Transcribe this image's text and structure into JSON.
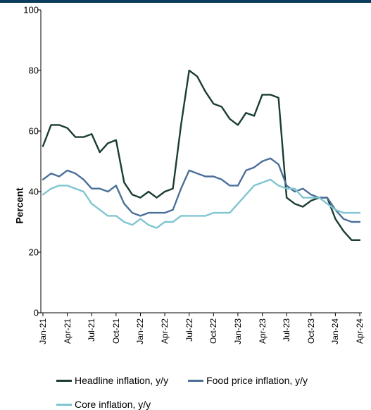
{
  "chart": {
    "type": "line",
    "border_top_color": "#0a3d5c",
    "background_color": "#ffffff",
    "ylabel": "Percent",
    "ylabel_fontsize": 14,
    "xlabels_fontsize": 12,
    "yticklabels_fontsize": 13,
    "ylim": [
      0,
      100
    ],
    "yticks": [
      0,
      20,
      40,
      60,
      80,
      100
    ],
    "axis_color": "#000000",
    "x_categories": [
      "Jan-21",
      "Feb-21",
      "Mar-21",
      "Apr-21",
      "May-21",
      "Jun-21",
      "Jul-21",
      "Aug-21",
      "Sep-21",
      "Oct-21",
      "Nov-21",
      "Dec-21",
      "Jan-22",
      "Feb-22",
      "Mar-22",
      "Apr-22",
      "May-22",
      "Jun-22",
      "Jul-22",
      "Aug-22",
      "Sep-22",
      "Oct-22",
      "Nov-22",
      "Dec-22",
      "Jan-23",
      "Feb-23",
      "Mar-23",
      "Apr-23",
      "May-23",
      "Jun-23",
      "Jul-23",
      "Aug-23",
      "Sep-23",
      "Oct-23",
      "Nov-23",
      "Dec-23",
      "Jan-24",
      "Feb-24",
      "Mar-24",
      "Apr-24"
    ],
    "x_tick_labels": [
      "Jan-21",
      "Apr-21",
      "Jul-21",
      "Oct-21",
      "Jan-22",
      "Apr-22",
      "Jul-22",
      "Oct-22",
      "Jan-23",
      "Apr-23",
      "Jul-23",
      "Oct-23",
      "Jan-24",
      "Apr-24"
    ],
    "x_tick_every": 3,
    "series": [
      {
        "name": "Headline inflation, y/y",
        "color": "#1a3c34",
        "line_width": 2.4,
        "values": [
          55,
          62,
          62,
          61,
          58,
          58,
          59,
          53,
          56,
          57,
          43,
          39,
          38,
          40,
          38,
          40,
          41,
          62,
          80,
          78,
          73,
          69,
          68,
          64,
          62,
          66,
          65,
          72,
          72,
          71,
          38,
          36,
          35,
          37,
          38,
          38,
          31,
          27,
          24,
          24
        ]
      },
      {
        "name": "Food price inflation, y/y",
        "color": "#4a6f99",
        "line_width": 2.4,
        "values": [
          44,
          46,
          45,
          47,
          46,
          44,
          41,
          41,
          40,
          42,
          36,
          33,
          32,
          33,
          33,
          33,
          34,
          41,
          47,
          46,
          45,
          45,
          44,
          42,
          42,
          47,
          48,
          50,
          51,
          49,
          42,
          40,
          41,
          39,
          38,
          38,
          34,
          31,
          30,
          30
        ]
      },
      {
        "name": "Core inflation, y/y",
        "color": "#7fc5d1",
        "line_width": 2.4,
        "values": [
          39,
          41,
          42,
          42,
          41,
          40,
          36,
          34,
          32,
          32,
          30,
          29,
          31,
          29,
          28,
          30,
          30,
          32,
          32,
          32,
          32,
          33,
          33,
          33,
          36,
          39,
          42,
          43,
          44,
          42,
          41,
          41,
          38,
          38,
          38,
          36,
          34,
          33,
          33,
          33
        ]
      }
    ],
    "legend": {
      "items": [
        {
          "label": "Headline inflation, y/y",
          "color": "#1a3c34"
        },
        {
          "label": "Food price inflation, y/y",
          "color": "#4a6f99"
        },
        {
          "label": "Core inflation, y/y",
          "color": "#7fc5d1"
        }
      ],
      "fontsize": 14
    }
  }
}
